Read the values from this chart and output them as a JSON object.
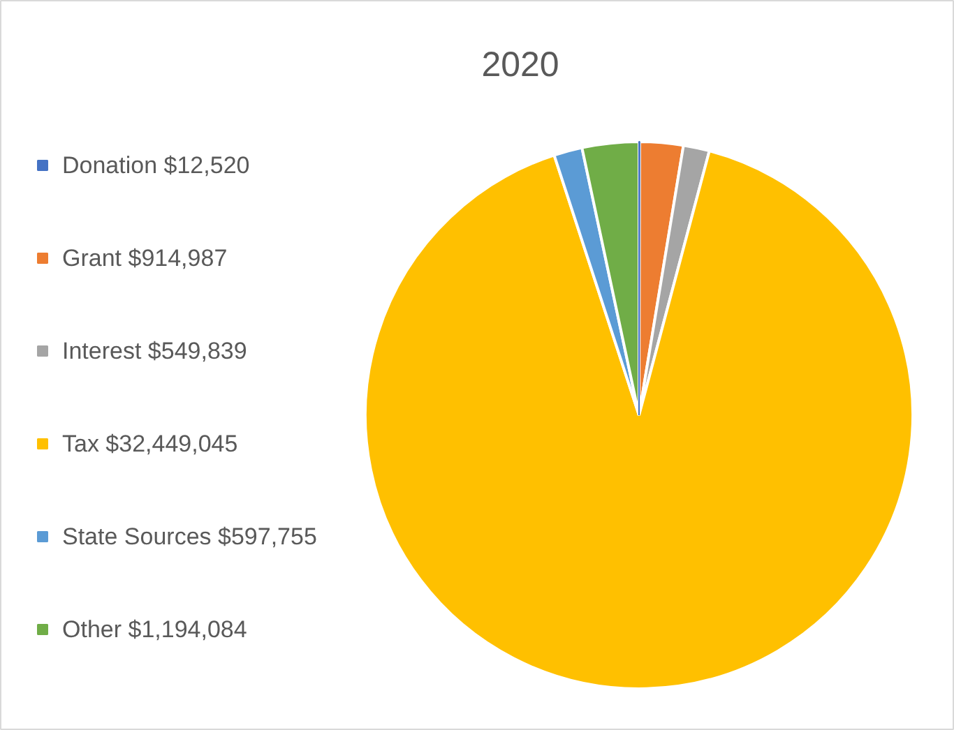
{
  "chart_data": {
    "type": "pie",
    "title": "2020",
    "categories": [
      "Donation $12,520",
      "Grant $914,987",
      "Interest $549,839",
      "Tax $32,449,045",
      "State Sources $597,755",
      "Other $1,194,084"
    ],
    "values": [
      12520,
      914987,
      549839,
      32449045,
      597755,
      1194084
    ],
    "colors": [
      "#4472c4",
      "#ed7d31",
      "#a5a5a5",
      "#ffc000",
      "#5b9bd5",
      "#70ad47"
    ],
    "legend": "left"
  }
}
